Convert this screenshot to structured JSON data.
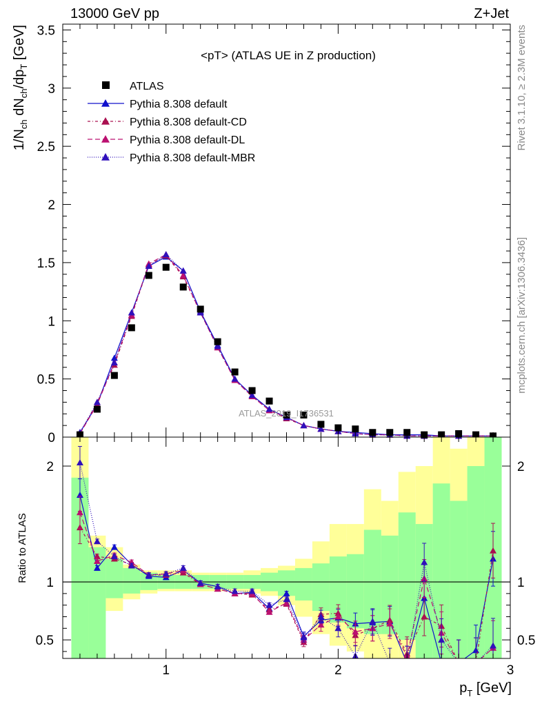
{
  "header": {
    "left": "13000 GeV pp",
    "right": "Z+Jet"
  },
  "side_labels": {
    "top": "Rivet 3.1.10, ≥ 2.3M events",
    "bottom": "mcplots.cern.ch [arXiv:1306.3436]"
  },
  "watermark": "ATLAS_2019_I1736531",
  "chart_data": [
    {
      "type": "scatter",
      "title": "<pT> (ATLAS UE in Z production)",
      "ylabel": "1/N_ch dN_ch/dp_T [GeV]",
      "xlim": [
        0.4,
        3.0
      ],
      "ylim": [
        0,
        3.55
      ],
      "yticks": [
        "0",
        "0.5",
        "1",
        "1.5",
        "2",
        "2.5",
        "3",
        "3.5"
      ],
      "x": [
        0.5,
        0.6,
        0.7,
        0.8,
        0.9,
        1.0,
        1.1,
        1.2,
        1.3,
        1.4,
        1.5,
        1.6,
        1.7,
        1.8,
        1.9,
        2.0,
        2.1,
        2.2,
        2.3,
        2.4,
        2.5,
        2.6,
        2.7,
        2.8,
        2.9
      ],
      "series": [
        {
          "name": "ATLAS",
          "color": "#000000",
          "marker": "square",
          "values": [
            0.02,
            0.24,
            0.53,
            0.94,
            1.39,
            1.46,
            1.29,
            1.1,
            0.82,
            0.56,
            0.4,
            0.31,
            0.19,
            0.19,
            0.11,
            0.08,
            0.07,
            0.04,
            0.04,
            0.04,
            0.02,
            0.02,
            0.03,
            0.02,
            0.01
          ]
        },
        {
          "name": "Pythia 8.308 default",
          "color": "#1010cc",
          "dash": "",
          "values": [
            0.04,
            0.28,
            0.68,
            1.07,
            1.47,
            1.55,
            1.43,
            1.08,
            0.79,
            0.5,
            0.36,
            0.24,
            0.17,
            0.1,
            0.07,
            0.05,
            0.04,
            0.03,
            0.02,
            0.02,
            0.02,
            0.01,
            0.01,
            0.01,
            0.01
          ]
        },
        {
          "name": "Pythia 8.308 default-CD",
          "color": "#aa1050",
          "dash": "4,3,1,3",
          "values": [
            0.03,
            0.3,
            0.62,
            1.04,
            1.48,
            1.56,
            1.38,
            1.07,
            0.77,
            0.49,
            0.35,
            0.23,
            0.16,
            0.1,
            0.07,
            0.05,
            0.03,
            0.02,
            0.02,
            0.01,
            0.01,
            0.01,
            0.01,
            0.01,
            0.01
          ]
        },
        {
          "name": "Pythia 8.308 default-DL",
          "color": "#bb1070",
          "dash": "7,4",
          "values": [
            0.03,
            0.28,
            0.64,
            1.05,
            1.49,
            1.57,
            1.39,
            1.07,
            0.77,
            0.49,
            0.35,
            0.23,
            0.17,
            0.1,
            0.07,
            0.05,
            0.03,
            0.02,
            0.02,
            0.01,
            0.01,
            0.01,
            0.01,
            0.01,
            0.01
          ]
        },
        {
          "name": "Pythia 8.308 default-MBR",
          "color": "#3010bb",
          "dash": "1,2",
          "values": [
            0.04,
            0.3,
            0.64,
            1.07,
            1.47,
            1.57,
            1.43,
            1.07,
            0.78,
            0.5,
            0.36,
            0.24,
            0.17,
            0.1,
            0.07,
            0.05,
            0.03,
            0.02,
            0.02,
            0.01,
            0.01,
            0.01,
            0.01,
            0.01,
            0.01
          ]
        }
      ]
    },
    {
      "type": "line",
      "ylabel": "Ratio to ATLAS",
      "xlabel": "p_T [GeV]",
      "xlim": [
        0.4,
        3.0
      ],
      "ylim": [
        0.34,
        2.25
      ],
      "xticks": [
        "1",
        "2",
        "3"
      ],
      "yticks": [
        "0.5",
        "1",
        "2"
      ],
      "x": [
        0.5,
        0.6,
        0.7,
        0.8,
        0.9,
        1.0,
        1.1,
        1.2,
        1.3,
        1.4,
        1.5,
        1.6,
        1.7,
        1.8,
        1.9,
        2.0,
        2.1,
        2.2,
        2.3,
        2.4,
        2.5,
        2.6,
        2.7,
        2.8,
        2.9
      ],
      "x_edges": [
        0.45,
        0.55,
        0.65,
        0.75,
        0.85,
        0.95,
        1.05,
        1.15,
        1.25,
        1.35,
        1.45,
        1.55,
        1.65,
        1.75,
        1.85,
        1.95,
        2.05,
        2.15,
        2.25,
        2.35,
        2.45,
        2.55,
        2.65,
        2.75,
        2.85,
        2.95
      ],
      "bands": {
        "yellow_upper": [
          2.4,
          1.4,
          1.3,
          1.15,
          1.1,
          1.1,
          1.1,
          1.08,
          1.08,
          1.08,
          1.1,
          1.12,
          1.14,
          1.2,
          1.35,
          1.5,
          1.5,
          1.8,
          1.7,
          1.95,
          2.0,
          2.4,
          2.15,
          2.4,
          2.4
        ],
        "yellow_lower": [
          0.3,
          0.65,
          0.75,
          0.85,
          0.9,
          0.92,
          0.92,
          0.92,
          0.92,
          0.92,
          0.9,
          0.88,
          0.8,
          0.7,
          0.55,
          0.45,
          0.4,
          0.3,
          0.3,
          0.3,
          0.3,
          0.3,
          0.3,
          0.3,
          0.3
        ],
        "green_upper": [
          1.9,
          1.3,
          1.2,
          1.12,
          1.08,
          1.06,
          1.06,
          1.06,
          1.06,
          1.06,
          1.06,
          1.08,
          1.1,
          1.12,
          1.16,
          1.22,
          1.24,
          1.45,
          1.4,
          1.6,
          1.5,
          1.85,
          1.7,
          2.0,
          2.3
        ],
        "green_lower": [
          0.3,
          0.3,
          0.86,
          0.9,
          0.93,
          0.94,
          0.94,
          0.94,
          0.94,
          0.94,
          0.94,
          0.92,
          0.88,
          0.84,
          0.75,
          0.65,
          0.6,
          0.55,
          0.55,
          0.5,
          0.3,
          0.3,
          0.3,
          0.3,
          0.3
        ],
        "yellow_color": "#ffff99",
        "green_color": "#99ff99"
      },
      "series": [
        {
          "name": "Pythia 8.308 default",
          "color": "#1010cc",
          "dash": "",
          "values": [
            1.75,
            1.12,
            1.3,
            1.15,
            1.05,
            1.04,
            1.1,
            0.99,
            0.96,
            0.9,
            0.91,
            0.77,
            0.9,
            0.53,
            0.67,
            0.69,
            0.64,
            0.65,
            0.66,
            0.3,
            0.86,
            0.3,
            0.3,
            0.41,
            1.2
          ]
        },
        {
          "name": "Pythia 8.308 default-CD",
          "color": "#aa1050",
          "dash": "4,3,1,3",
          "values": [
            1.47,
            1.22,
            1.2,
            1.15,
            1.06,
            1.06,
            1.08,
            0.98,
            0.94,
            0.9,
            0.89,
            0.76,
            0.81,
            0.48,
            0.72,
            0.73,
            0.54,
            0.6,
            0.67,
            0.38,
            0.7,
            0.62,
            0.3,
            0.3,
            1.27
          ]
        },
        {
          "name": "Pythia 8.308 default-DL",
          "color": "#bb1070",
          "dash": "7,4",
          "values": [
            1.6,
            1.18,
            1.23,
            1.17,
            1.06,
            1.07,
            1.1,
            0.98,
            0.94,
            0.9,
            0.9,
            0.74,
            0.82,
            0.5,
            0.63,
            0.7,
            0.57,
            0.6,
            0.64,
            0.36,
            1.03,
            0.56,
            0.3,
            0.3,
            0.43
          ]
        },
        {
          "name": "Pythia 8.308 default-MBR",
          "color": "#3010bb",
          "dash": "1,2",
          "values": [
            2.03,
            1.35,
            1.22,
            1.14,
            1.06,
            1.07,
            1.12,
            0.99,
            0.96,
            0.92,
            0.92,
            0.8,
            0.85,
            0.52,
            0.7,
            0.6,
            0.36,
            0.66,
            0.3,
            0.3,
            1.17,
            0.5,
            0.3,
            0.3,
            0.45
          ]
        }
      ]
    }
  ]
}
